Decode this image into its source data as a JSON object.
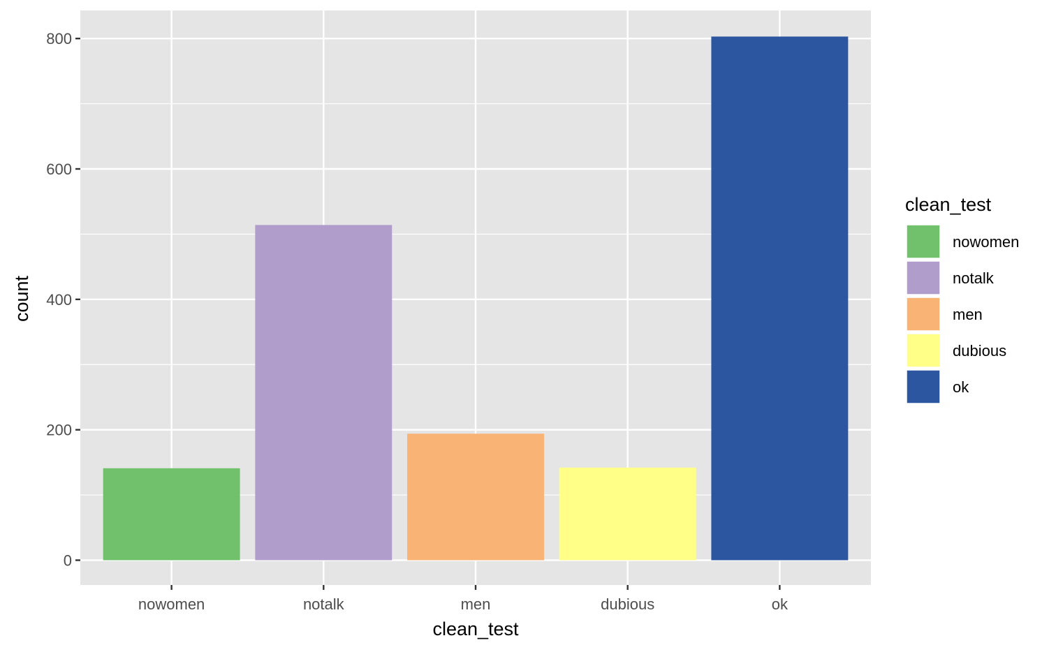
{
  "chart_data": {
    "type": "bar",
    "categories": [
      "nowomen",
      "notalk",
      "men",
      "dubious",
      "ok"
    ],
    "values": [
      141,
      514,
      194,
      142,
      803
    ],
    "colors": [
      "#71C16C",
      "#B09DCB",
      "#F9B375",
      "#FFFF88",
      "#2C57A0"
    ],
    "xlabel": "clean_test",
    "ylabel": "count",
    "yticks": [
      0,
      200,
      400,
      600,
      800
    ],
    "ylim": [
      -38,
      843
    ],
    "grid": true,
    "panel_background": "#E5E5E5",
    "grid_color": "#FFFFFF",
    "legend": {
      "title": "clean_test",
      "placement": "right",
      "entries": [
        "nowomen",
        "notalk",
        "men",
        "dubious",
        "ok"
      ]
    }
  }
}
